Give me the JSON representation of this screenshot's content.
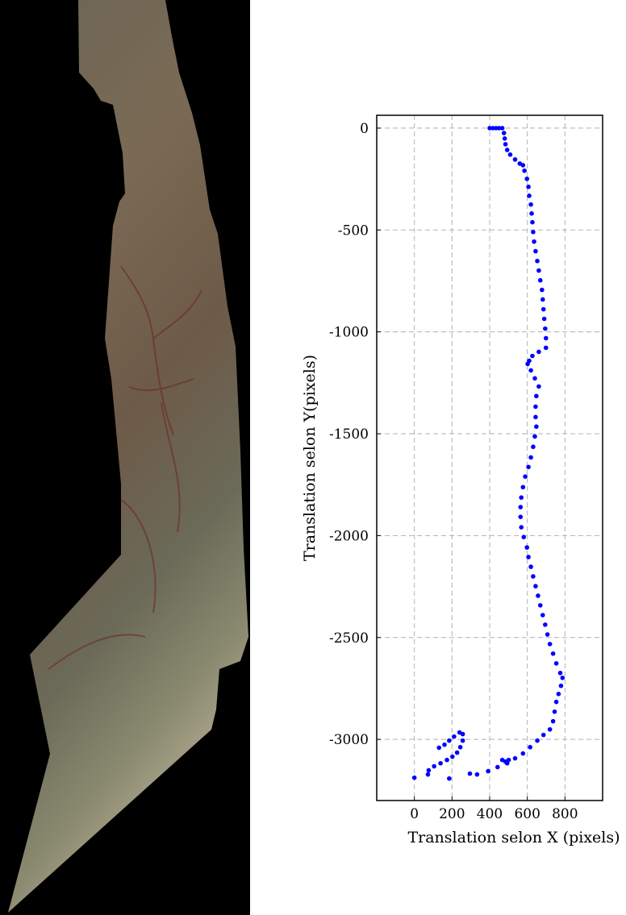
{
  "chart_data": {
    "type": "scatter",
    "xlabel": "Translation selon X (pixels)",
    "ylabel": "Translation selon Y(pixels)",
    "color": "#0000ff",
    "grid": true,
    "xlim": [
      -200,
      1000
    ],
    "xticks": [
      0,
      200,
      400,
      600,
      800
    ],
    "ylim": [
      -3300,
      63
    ],
    "yticks": [
      0,
      -500,
      -1000,
      -1500,
      -2000,
      -2500,
      -3000
    ],
    "x": [
      400,
      417,
      434,
      450,
      467,
      476,
      480,
      484,
      493,
      509,
      535,
      560,
      577,
      585,
      598,
      606,
      610,
      619,
      623,
      627,
      631,
      636,
      644,
      653,
      661,
      669,
      678,
      682,
      686,
      690,
      695,
      699,
      699,
      661,
      627,
      610,
      602,
      619,
      640,
      661,
      648,
      644,
      644,
      648,
      640,
      631,
      619,
      606,
      589,
      577,
      568,
      564,
      564,
      568,
      581,
      598,
      606,
      619,
      631,
      644,
      657,
      669,
      682,
      695,
      707,
      720,
      737,
      754,
      775,
      787,
      779,
      766,
      754,
      745,
      737,
      720,
      686,
      653,
      615,
      577,
      535,
      493,
      442,
      392,
      333,
      467,
      484,
      501,
      0,
      72,
      76,
      105,
      139,
      173,
      202,
      227,
      244,
      257,
      257,
      240,
      211,
      185,
      160,
      131,
      185,
      295
    ],
    "y": [
      0,
      0,
      0,
      0,
      0,
      -24,
      -51,
      -79,
      -107,
      -130,
      -154,
      -174,
      -182,
      -209,
      -249,
      -288,
      -332,
      -375,
      -419,
      -462,
      -510,
      -557,
      -604,
      -652,
      -699,
      -747,
      -794,
      -841,
      -889,
      -936,
      -984,
      -1031,
      -1078,
      -1098,
      -1118,
      -1142,
      -1157,
      -1189,
      -1228,
      -1268,
      -1315,
      -1367,
      -1418,
      -1465,
      -1513,
      -1564,
      -1616,
      -1663,
      -1710,
      -1762,
      -1813,
      -1860,
      -1908,
      -1959,
      -2007,
      -2058,
      -2105,
      -2153,
      -2200,
      -2248,
      -2295,
      -2342,
      -2390,
      -2437,
      -2485,
      -2532,
      -2579,
      -2627,
      -2674,
      -2698,
      -2737,
      -2777,
      -2816,
      -2864,
      -2911,
      -2951,
      -2978,
      -3006,
      -3038,
      -3069,
      -3093,
      -3117,
      -3136,
      -3156,
      -3172,
      -3101,
      -3109,
      -3101,
      -3188,
      -3172,
      -3152,
      -3132,
      -3117,
      -3101,
      -3085,
      -3065,
      -3038,
      -3006,
      -2974,
      -2966,
      -2986,
      -3006,
      -3026,
      -3041,
      -3192,
      -3168
    ]
  }
}
